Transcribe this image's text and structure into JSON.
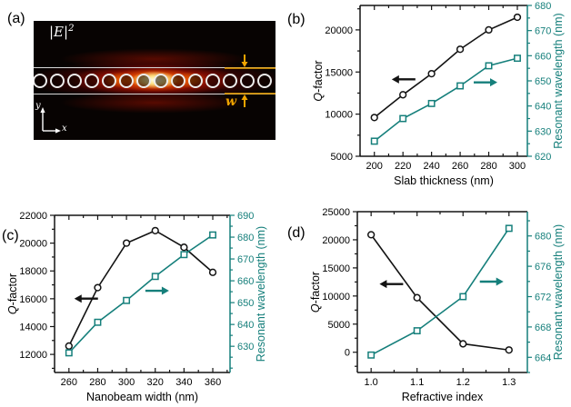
{
  "panel_labels": {
    "a": "(a)",
    "b": "(b)",
    "c": "(c)",
    "d": "(d)"
  },
  "colors": {
    "teal": "#157f7b",
    "black": "#131313",
    "annotation_yellow": "#f0a400",
    "panel_bg": "#070302"
  },
  "panel_a": {
    "field_label_base": "|E|",
    "field_label_sup": "2",
    "beam_width_label": "w",
    "x_axis_label": "x",
    "y_axis_label": "y",
    "hole_count": 14
  },
  "chart_data": [
    {
      "id": "b",
      "type": "line",
      "panel_label": "(b)",
      "xlabel": "Slab thickness (nm)",
      "x": [
        200,
        220,
        240,
        260,
        280,
        300
      ],
      "x_ticks": [
        200,
        220,
        240,
        260,
        280,
        300
      ],
      "x_minor": 10,
      "x_decimals": 0,
      "xlim": [
        190,
        307
      ],
      "left": {
        "label": "Q-factor",
        "lim": [
          5000,
          22900
        ],
        "ticks": [
          5000,
          10000,
          15000,
          20000
        ],
        "minor": 2500
      },
      "right": {
        "label": "Resonant wavelength (nm)",
        "lim": [
          620,
          680
        ],
        "ticks": [
          620,
          630,
          640,
          650,
          660,
          670,
          680
        ],
        "minor": 5
      },
      "series": [
        {
          "name": "Q-factor",
          "axis": "left",
          "marker": "circle",
          "color": "black",
          "values": [
            9600,
            12300,
            14800,
            17700,
            20000,
            21500
          ]
        },
        {
          "name": "Resonant wavelength",
          "axis": "right",
          "marker": "square",
          "color": "teal",
          "values": [
            626,
            635,
            641,
            648,
            656,
            659
          ]
        }
      ],
      "arrows": [
        {
          "dir": "left",
          "color": "black",
          "fx": 0.26,
          "fy": 0.49
        },
        {
          "dir": "right",
          "color": "teal",
          "fx": 0.75,
          "fy": 0.51
        }
      ],
      "grid": false,
      "legend": "none"
    },
    {
      "id": "c",
      "type": "line",
      "panel_label": "(c)",
      "xlabel": "Nanobeam width (nm)",
      "x": [
        260,
        280,
        300,
        320,
        340,
        360
      ],
      "x_ticks": [
        260,
        280,
        300,
        320,
        340,
        360
      ],
      "x_minor": 10,
      "x_decimals": 0,
      "xlim": [
        250,
        372
      ],
      "left": {
        "label": "Q-factor",
        "lim": [
          10700,
          22000
        ],
        "ticks": [
          12000,
          14000,
          16000,
          18000,
          20000,
          22000
        ],
        "minor": 1000
      },
      "right": {
        "label": "Resonant wavelength (nm)",
        "lim": [
          618,
          690
        ],
        "ticks": [
          630,
          640,
          650,
          660,
          670,
          680,
          690
        ],
        "minor": 5
      },
      "series": [
        {
          "name": "Q-factor",
          "axis": "left",
          "marker": "circle",
          "color": "black",
          "values": [
            12600,
            16800,
            20000,
            20900,
            19700,
            17900
          ]
        },
        {
          "name": "Resonant wavelength",
          "axis": "right",
          "marker": "square",
          "color": "teal",
          "values": [
            627,
            641,
            651,
            662,
            672,
            681
          ]
        }
      ],
      "arrows": [
        {
          "dir": "left",
          "color": "black",
          "fx": 0.18,
          "fy": 0.53
        },
        {
          "dir": "right",
          "color": "teal",
          "fx": 0.585,
          "fy": 0.48
        }
      ],
      "grid": false,
      "legend": "none"
    },
    {
      "id": "d",
      "type": "line",
      "panel_label": "(d)",
      "xlabel": "Refractive index",
      "x": [
        1.0,
        1.1,
        1.2,
        1.3
      ],
      "x_ticks": [
        1.0,
        1.1,
        1.2,
        1.3
      ],
      "x_minor": 0.05,
      "x_decimals": 1,
      "xlim": [
        0.97,
        1.34
      ],
      "left": {
        "label": "Q-factor",
        "lim": [
          -3600,
          25000
        ],
        "ticks": [
          0,
          5000,
          10000,
          15000,
          20000,
          25000
        ],
        "minor": 2500
      },
      "right": {
        "label": "Resonant wavelength (nm)",
        "lim": [
          662,
          683.2
        ],
        "ticks": [
          664,
          668,
          672,
          676,
          680
        ],
        "minor": 2
      },
      "series": [
        {
          "name": "Q-factor",
          "axis": "left",
          "marker": "circle",
          "color": "black",
          "values": [
            20900,
            9700,
            1500,
            400
          ]
        },
        {
          "name": "Resonant wavelength",
          "axis": "right",
          "marker": "square",
          "color": "teal",
          "values": [
            664.3,
            667.5,
            672,
            681
          ]
        }
      ],
      "arrows": [
        {
          "dir": "left",
          "color": "black",
          "fx": 0.2,
          "fy": 0.45
        },
        {
          "dir": "right",
          "color": "teal",
          "fx": 0.79,
          "fy": 0.435
        }
      ],
      "grid": false,
      "legend": "none"
    }
  ]
}
